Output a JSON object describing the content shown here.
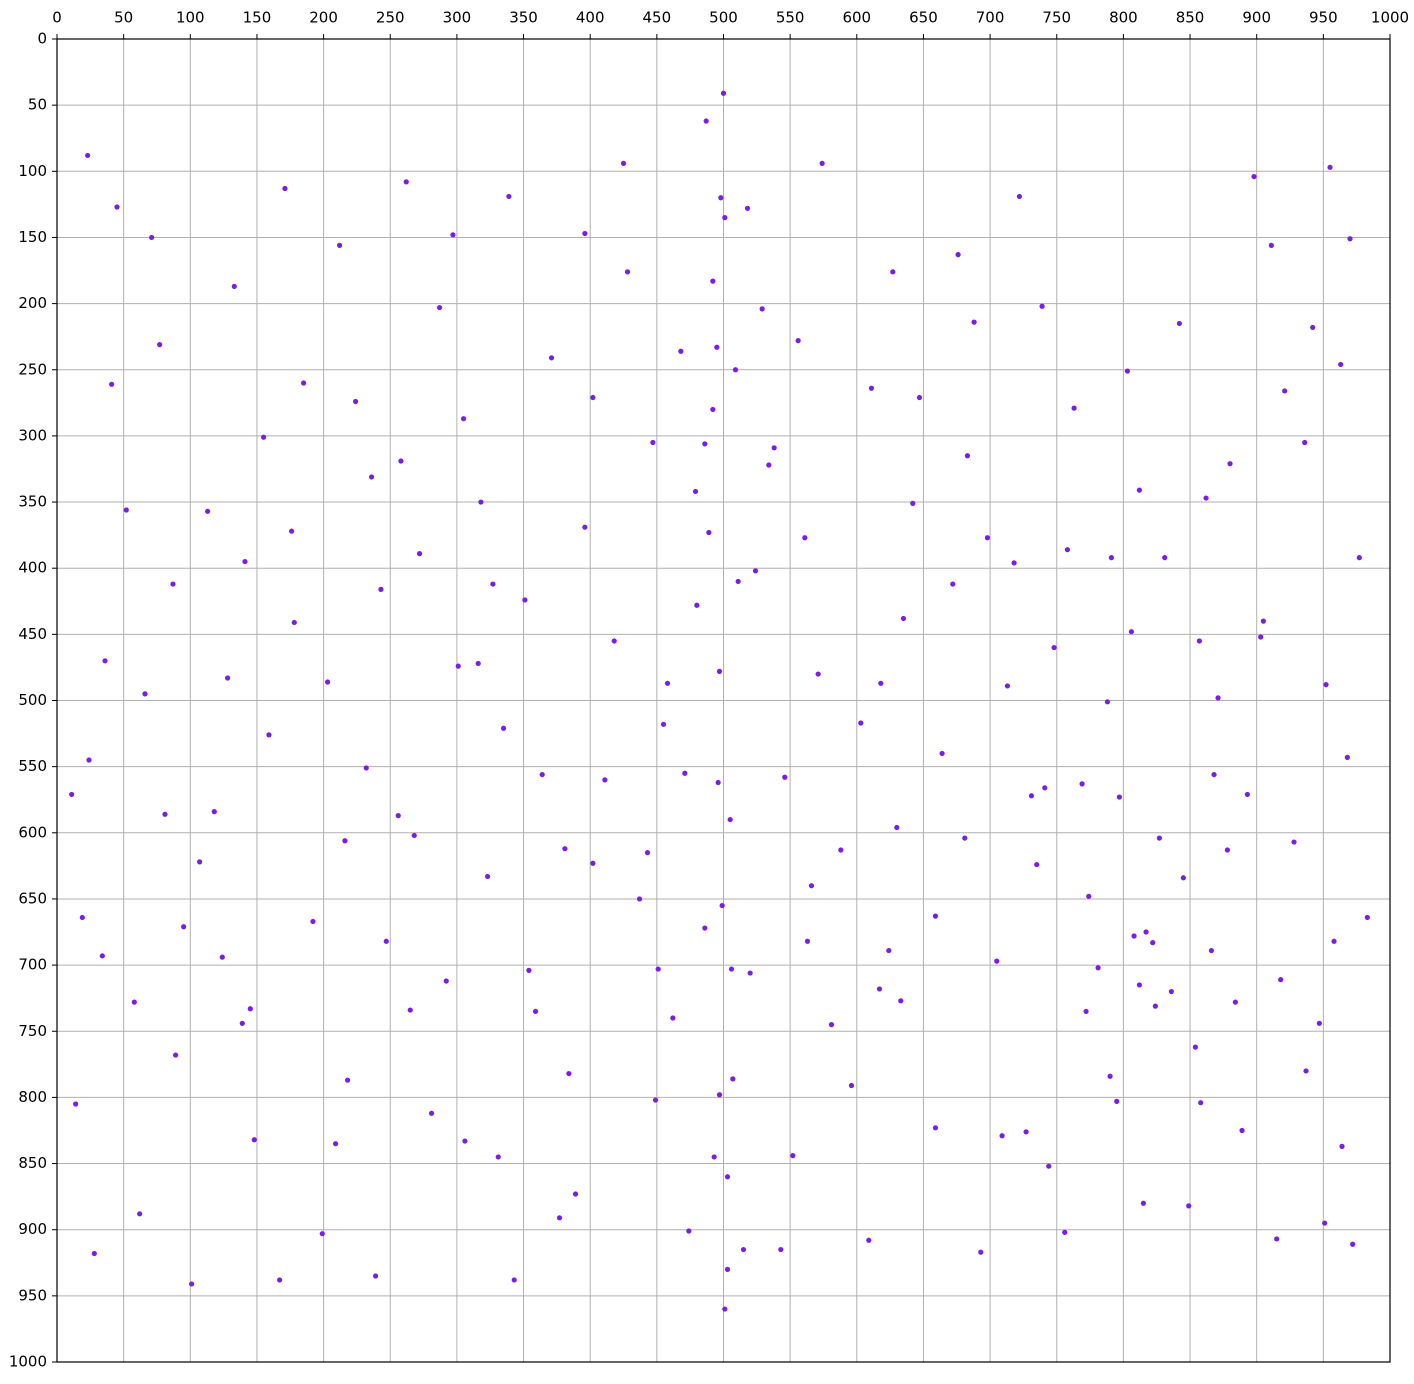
{
  "chart_data": {
    "type": "scatter",
    "color": "#7a1de6",
    "grid": true,
    "x_axis_position": "top",
    "y_inverted": true,
    "xlim": [
      0,
      1000
    ],
    "ylim": [
      0,
      1000
    ],
    "xticks": [
      0,
      50,
      100,
      150,
      200,
      250,
      300,
      350,
      400,
      450,
      500,
      550,
      600,
      650,
      700,
      750,
      800,
      850,
      900,
      950,
      1000
    ],
    "yticks": [
      0,
      50,
      100,
      150,
      200,
      250,
      300,
      350,
      400,
      450,
      500,
      550,
      600,
      650,
      700,
      750,
      800,
      850,
      900,
      950,
      1000
    ],
    "x": [
      23,
      87,
      145,
      212,
      268,
      331,
      402,
      455,
      498,
      503,
      561,
      624,
      688,
      741,
      795,
      812,
      866,
      903,
      955,
      972,
      41,
      118,
      176,
      239,
      297,
      354,
      418,
      487,
      495,
      507,
      538,
      603,
      659,
      722,
      774,
      831,
      884,
      921,
      968,
      14,
      66,
      133,
      192,
      258,
      316,
      377,
      443,
      492,
      499,
      511,
      574,
      635,
      698,
      756,
      808,
      842,
      893,
      947,
      34,
      101,
      159,
      224,
      281,
      339,
      396,
      462,
      486,
      501,
      529,
      588,
      647,
      713,
      769,
      824,
      857,
      911,
      964,
      52,
      89,
      171,
      247,
      305,
      364,
      428,
      474,
      496,
      518,
      552,
      617,
      676,
      735,
      791,
      849,
      878,
      936,
      983,
      28,
      77,
      141,
      203,
      262,
      323,
      384,
      447,
      480,
      506,
      546,
      609,
      664,
      727,
      781,
      803,
      862,
      898,
      952,
      11,
      62,
      124,
      185,
      243,
      306,
      371,
      437,
      493,
      500,
      524,
      581,
      642,
      705,
      763,
      817,
      871,
      928,
      977,
      45,
      113,
      167,
      232,
      292,
      351,
      411,
      468,
      489,
      509,
      563,
      627,
      693,
      748,
      797,
      836,
      889,
      942,
      19,
      81,
      148,
      216,
      272,
      335,
      396,
      458,
      497,
      515,
      571,
      630,
      683,
      744,
      806,
      845,
      905,
      958,
      36,
      95,
      155,
      218,
      287,
      343,
      402,
      471,
      501,
      534,
      596,
      659,
      718,
      772,
      827,
      854,
      915,
      970,
      58,
      128,
      199,
      256,
      318,
      381,
      449,
      486,
      505,
      543,
      611,
      672,
      731,
      788,
      815,
      880,
      937,
      963,
      24,
      107,
      178,
      236,
      301,
      359,
      425,
      479,
      497,
      520,
      556,
      618,
      681,
      739,
      790,
      822,
      868,
      918,
      951,
      71,
      139,
      209,
      265,
      327,
      389,
      451,
      492,
      503,
      566,
      633,
      709,
      758,
      812,
      858
    ],
    "values": [
      88,
      412,
      733,
      156,
      602,
      845,
      271,
      518,
      120,
      930,
      377,
      689,
      214,
      566,
      803,
      341,
      689,
      452,
      97,
      911,
      261,
      584,
      372,
      935,
      148,
      704,
      455,
      62,
      233,
      786,
      309,
      517,
      823,
      119,
      648,
      392,
      728,
      266,
      543,
      805,
      495,
      187,
      667,
      319,
      472,
      891,
      615,
      183,
      655,
      410,
      94,
      438,
      377,
      902,
      678,
      215,
      571,
      744,
      693,
      941,
      526,
      274,
      812,
      119,
      369,
      740,
      306,
      960,
      204,
      613,
      271,
      489,
      563,
      731,
      455,
      156,
      837,
      356,
      768,
      113,
      682,
      287,
      556,
      176,
      901,
      562,
      128,
      844,
      718,
      163,
      624,
      392,
      882,
      613,
      305,
      664,
      918,
      231,
      395,
      486,
      108,
      633,
      782,
      305,
      428,
      703,
      558,
      908,
      540,
      826,
      702,
      251,
      347,
      104,
      488,
      571,
      888,
      694,
      260,
      416,
      833,
      241,
      650,
      845,
      41,
      402,
      745,
      351,
      697,
      279,
      675,
      498,
      607,
      392,
      127,
      357,
      938,
      551,
      712,
      424,
      560,
      236,
      373,
      250,
      682,
      176,
      917,
      460,
      573,
      720,
      825,
      218,
      664,
      586,
      832,
      606,
      389,
      521,
      147,
      487,
      798,
      915,
      480,
      596,
      315,
      852,
      448,
      634,
      440,
      682,
      470,
      671,
      301,
      787,
      203,
      938,
      623,
      555,
      135,
      322,
      791,
      663,
      396,
      735,
      604,
      762,
      907,
      151,
      728,
      483,
      903,
      587,
      350,
      612,
      802,
      672,
      590,
      915,
      264,
      412,
      572,
      501,
      880,
      321,
      780,
      246,
      545,
      622,
      441,
      331,
      474,
      735,
      94,
      342,
      478,
      706,
      228,
      487,
      604,
      202,
      784,
      683,
      556,
      711,
      895,
      150,
      744,
      835,
      734,
      412,
      873,
      703,
      280,
      860,
      640,
      727,
      829,
      386,
      715,
      804
    ]
  }
}
